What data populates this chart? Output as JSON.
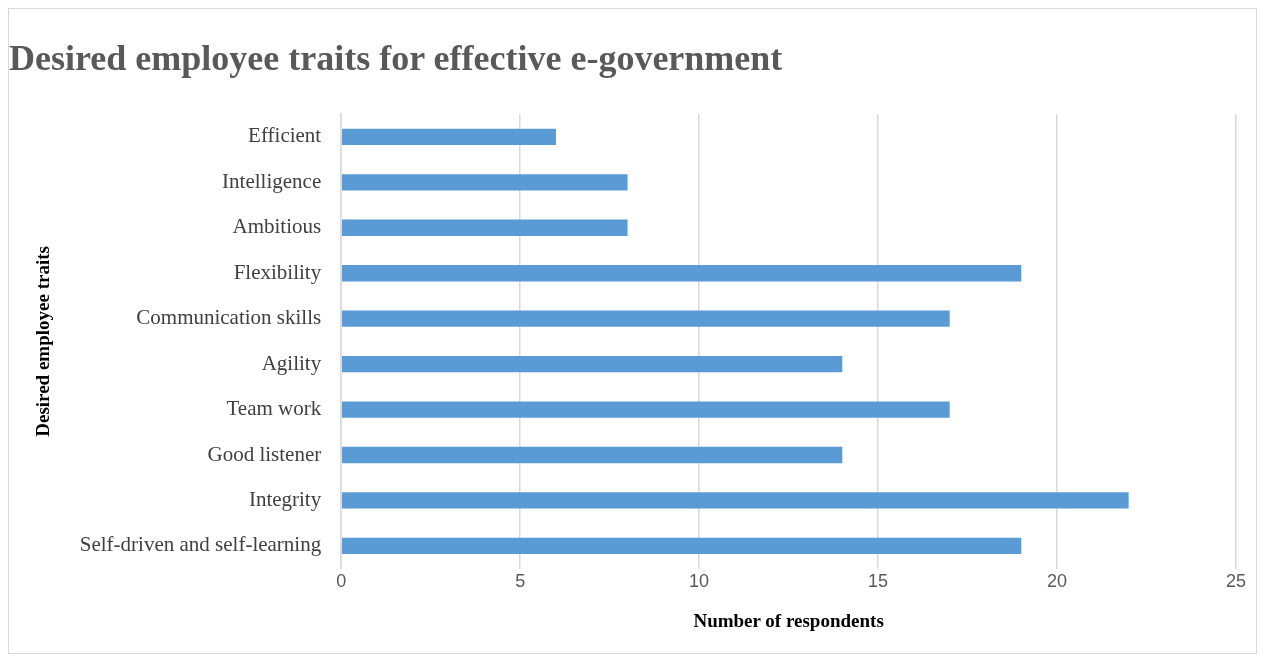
{
  "chart_data": {
    "type": "bar",
    "orientation": "horizontal",
    "title": "Desired employee traits for effective e-government",
    "xlabel": "Number of respondents",
    "ylabel": "Desired employee traits",
    "categories": [
      "Efficient",
      "Intelligence",
      "Ambitious",
      "Flexibility",
      "Communication skills",
      "Agility",
      "Team work",
      "Good listener",
      "Integrity",
      "Self-driven and self-learning"
    ],
    "values": [
      6,
      8,
      8,
      19,
      17,
      14,
      17,
      14,
      22,
      19
    ],
    "color": "#5b9bd5",
    "xlim": [
      0,
      25
    ],
    "xticks": [
      0,
      5,
      10,
      15,
      20,
      25
    ],
    "grid": "x",
    "legend": false
  }
}
